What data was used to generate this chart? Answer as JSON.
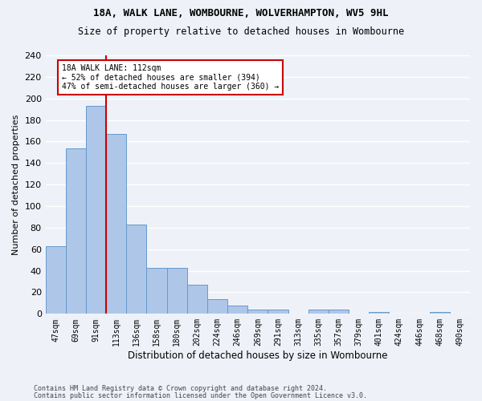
{
  "title1": "18A, WALK LANE, WOMBOURNE, WOLVERHAMPTON, WV5 9HL",
  "title2": "Size of property relative to detached houses in Wombourne",
  "xlabel": "Distribution of detached houses by size in Wombourne",
  "ylabel": "Number of detached properties",
  "categories": [
    "47sqm",
    "69sqm",
    "91sqm",
    "113sqm",
    "136sqm",
    "158sqm",
    "180sqm",
    "202sqm",
    "224sqm",
    "246sqm",
    "269sqm",
    "291sqm",
    "313sqm",
    "335sqm",
    "357sqm",
    "379sqm",
    "401sqm",
    "424sqm",
    "446sqm",
    "468sqm",
    "490sqm"
  ],
  "values": [
    63,
    154,
    193,
    167,
    83,
    43,
    43,
    27,
    14,
    8,
    4,
    4,
    0,
    4,
    4,
    0,
    2,
    0,
    0,
    2,
    0
  ],
  "bar_color": "#aec6e8",
  "bar_edge_color": "#6699cc",
  "annotation_text_line1": "18A WALK LANE: 112sqm",
  "annotation_text_line2": "← 52% of detached houses are smaller (394)",
  "annotation_text_line3": "47% of semi-detached houses are larger (360) →",
  "annotation_box_color": "#ffffff",
  "annotation_line_color": "#cc0000",
  "ylim": [
    0,
    240
  ],
  "yticks": [
    0,
    20,
    40,
    60,
    80,
    100,
    120,
    140,
    160,
    180,
    200,
    220,
    240
  ],
  "footer1": "Contains HM Land Registry data © Crown copyright and database right 2024.",
  "footer2": "Contains public sector information licensed under the Open Government Licence v3.0.",
  "bg_color": "#eef2f8",
  "grid_color": "#ffffff",
  "title1_fontsize": 9,
  "title2_fontsize": 8.5,
  "ylabel_fontsize": 8,
  "xlabel_fontsize": 8.5,
  "tick_fontsize": 7,
  "footer_fontsize": 6
}
